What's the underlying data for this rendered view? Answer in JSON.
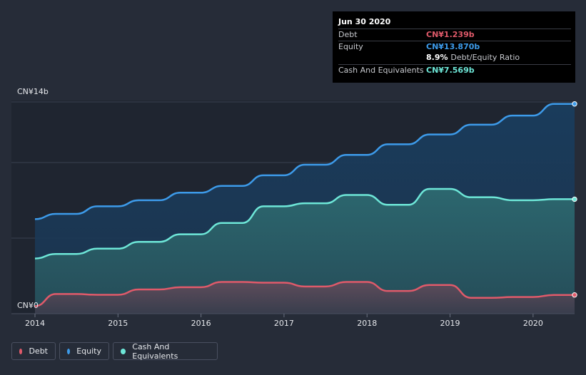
{
  "chart_data": {
    "type": "area",
    "title": "",
    "xlabel": "",
    "ylabel": "",
    "ylim": [
      0,
      14
    ],
    "y_unit": "CN¥ billions",
    "y_tick_labels": [
      "CN¥0",
      "CN¥14b"
    ],
    "x_ticks": [
      2014,
      2015,
      2016,
      2017,
      2018,
      2019,
      2020
    ],
    "x_tick_labels": [
      "2014",
      "2015",
      "2016",
      "2017",
      "2018",
      "2019",
      "2020"
    ],
    "xlim": [
      2014,
      2020.5
    ],
    "series": [
      {
        "name": "Debt",
        "color": "#e05a6a",
        "points": [
          [
            2014.0,
            0.5
          ],
          [
            2014.25,
            1.3
          ],
          [
            2014.5,
            1.3
          ],
          [
            2014.75,
            1.25
          ],
          [
            2015.0,
            1.25
          ],
          [
            2015.25,
            1.6
          ],
          [
            2015.5,
            1.6
          ],
          [
            2015.75,
            1.75
          ],
          [
            2016.0,
            1.75
          ],
          [
            2016.25,
            2.1
          ],
          [
            2016.5,
            2.1
          ],
          [
            2016.75,
            2.05
          ],
          [
            2017.0,
            2.05
          ],
          [
            2017.25,
            1.8
          ],
          [
            2017.5,
            1.8
          ],
          [
            2017.75,
            2.1
          ],
          [
            2018.0,
            2.1
          ],
          [
            2018.25,
            1.5
          ],
          [
            2018.5,
            1.5
          ],
          [
            2018.75,
            1.9
          ],
          [
            2019.0,
            1.9
          ],
          [
            2019.25,
            1.05
          ],
          [
            2019.5,
            1.05
          ],
          [
            2019.75,
            1.1
          ],
          [
            2020.0,
            1.1
          ],
          [
            2020.25,
            1.239
          ],
          [
            2020.5,
            1.239
          ]
        ]
      },
      {
        "name": "Equity",
        "color": "#3d9bea",
        "points": [
          [
            2014.0,
            6.25
          ],
          [
            2014.25,
            6.6
          ],
          [
            2014.5,
            6.6
          ],
          [
            2014.75,
            7.1
          ],
          [
            2015.0,
            7.1
          ],
          [
            2015.25,
            7.5
          ],
          [
            2015.5,
            7.5
          ],
          [
            2015.75,
            8.0
          ],
          [
            2016.0,
            8.0
          ],
          [
            2016.25,
            8.45
          ],
          [
            2016.5,
            8.45
          ],
          [
            2016.75,
            9.15
          ],
          [
            2017.0,
            9.15
          ],
          [
            2017.25,
            9.85
          ],
          [
            2017.5,
            9.85
          ],
          [
            2017.75,
            10.5
          ],
          [
            2018.0,
            10.5
          ],
          [
            2018.25,
            11.2
          ],
          [
            2018.5,
            11.2
          ],
          [
            2018.75,
            11.85
          ],
          [
            2019.0,
            11.85
          ],
          [
            2019.25,
            12.5
          ],
          [
            2019.5,
            12.5
          ],
          [
            2019.75,
            13.1
          ],
          [
            2020.0,
            13.1
          ],
          [
            2020.25,
            13.87
          ],
          [
            2020.5,
            13.87
          ]
        ]
      },
      {
        "name": "Cash And Equivalents",
        "color": "#6ee7d8",
        "points": [
          [
            2014.0,
            3.65
          ],
          [
            2014.25,
            3.95
          ],
          [
            2014.5,
            3.95
          ],
          [
            2014.75,
            4.3
          ],
          [
            2015.0,
            4.3
          ],
          [
            2015.25,
            4.75
          ],
          [
            2015.5,
            4.75
          ],
          [
            2015.75,
            5.25
          ],
          [
            2016.0,
            5.25
          ],
          [
            2016.25,
            6.0
          ],
          [
            2016.5,
            6.0
          ],
          [
            2016.75,
            7.1
          ],
          [
            2017.0,
            7.1
          ],
          [
            2017.25,
            7.3
          ],
          [
            2017.5,
            7.3
          ],
          [
            2017.75,
            7.85
          ],
          [
            2018.0,
            7.85
          ],
          [
            2018.25,
            7.2
          ],
          [
            2018.5,
            7.2
          ],
          [
            2018.75,
            8.25
          ],
          [
            2019.0,
            8.25
          ],
          [
            2019.25,
            7.7
          ],
          [
            2019.5,
            7.7
          ],
          [
            2019.75,
            7.5
          ],
          [
            2020.0,
            7.5
          ],
          [
            2020.25,
            7.569
          ],
          [
            2020.5,
            7.569
          ]
        ]
      }
    ]
  },
  "tooltip": {
    "date": "Jun 30 2020",
    "debt_label": "Debt",
    "debt_value": "CN¥1.239b",
    "equity_label": "Equity",
    "equity_value": "CN¥13.870b",
    "ratio_value": "8.9%",
    "ratio_label": "Debt/Equity Ratio",
    "cash_label": "Cash And Equivalents",
    "cash_value": "CN¥7.569b"
  },
  "legend": {
    "items": [
      {
        "label": "Debt",
        "color": "#e05a6a"
      },
      {
        "label": "Equity",
        "color": "#3d9bea"
      },
      {
        "label": "Cash And Equivalents",
        "color": "#6ee7d8"
      }
    ]
  }
}
